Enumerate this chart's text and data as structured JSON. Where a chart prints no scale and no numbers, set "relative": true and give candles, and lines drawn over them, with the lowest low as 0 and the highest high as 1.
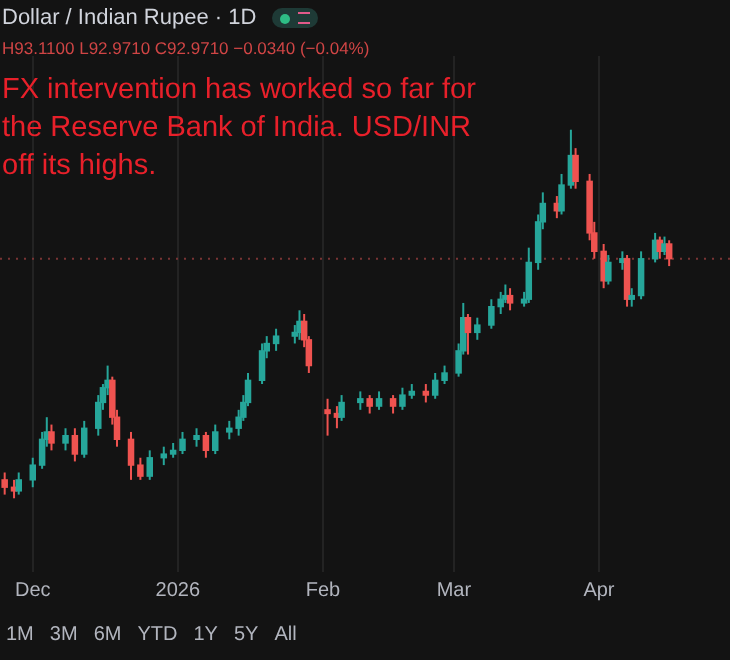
{
  "chart_data": {
    "type": "candlestick",
    "title": "Dollar / Indian Rupee · 1D",
    "subtitle": "H93.1100 L92.9710 C92.9710 −0.0340 (−0.04%)",
    "annotations": [
      "FX intervention has worked so far for the Reserve Bank of India. USD/INR off its highs.",
      "1M",
      "3M",
      "6M",
      "YTD",
      "1Y",
      "5Y",
      "All"
    ],
    "relative": true,
    "x": [
      "2025-11-25",
      "2025-11-27",
      "2025-11-28",
      "2025-12-01",
      "2025-12-03",
      "2025-12-04",
      "2025-12-05",
      "2025-12-08",
      "2025-12-10",
      "2025-12-12",
      "2025-12-15",
      "2025-12-16",
      "2025-12-17",
      "2025-12-18",
      "2025-12-19",
      "2025-12-22",
      "2025-12-24",
      "2025-12-26",
      "2025-12-29",
      "2025-12-31",
      "2026-01-02",
      "2026-01-05",
      "2026-01-07",
      "2026-01-09",
      "2026-01-12",
      "2026-01-14",
      "2026-01-15",
      "2026-01-16",
      "2026-01-19",
      "2026-01-20",
      "2026-01-22",
      "2026-01-26",
      "2026-01-27",
      "2026-01-28",
      "2026-01-29",
      "2026-02-02",
      "2026-02-04",
      "2026-02-05",
      "2026-02-09",
      "2026-02-11",
      "2026-02-13",
      "2026-02-16",
      "2026-02-18",
      "2026-02-20",
      "2026-02-23",
      "2026-02-25",
      "2026-02-27",
      "2026-03-02",
      "2026-03-03",
      "2026-03-04",
      "2026-03-06",
      "2026-03-09",
      "2026-03-11",
      "2026-03-12",
      "2026-03-13",
      "2026-03-16",
      "2026-03-17",
      "2026-03-19",
      "2026-03-20",
      "2026-03-23",
      "2026-03-24",
      "2026-03-26",
      "2026-03-27",
      "2026-03-30",
      "2026-03-31",
      "2026-04-02",
      "2026-04-03",
      "2026-04-06",
      "2026-04-07",
      "2026-04-08",
      "2026-04-10",
      "2026-04-13",
      "2026-04-14",
      "2026-04-15",
      "2026-04-16"
    ],
    "ohlc": [
      [
        0.05,
        0.07,
        0.01,
        0.03
      ],
      [
        0.03,
        0.05,
        0.0,
        0.02
      ],
      [
        0.02,
        0.07,
        0.01,
        0.05
      ],
      [
        0.05,
        0.11,
        0.03,
        0.09
      ],
      [
        0.09,
        0.18,
        0.08,
        0.16
      ],
      [
        0.16,
        0.22,
        0.14,
        0.18
      ],
      [
        0.18,
        0.2,
        0.13,
        0.15
      ],
      [
        0.15,
        0.19,
        0.13,
        0.17
      ],
      [
        0.17,
        0.19,
        0.1,
        0.12
      ],
      [
        0.12,
        0.21,
        0.11,
        0.19
      ],
      [
        0.19,
        0.28,
        0.17,
        0.26
      ],
      [
        0.26,
        0.31,
        0.24,
        0.3
      ],
      [
        0.3,
        0.36,
        0.28,
        0.32
      ],
      [
        0.32,
        0.33,
        0.2,
        0.22
      ],
      [
        0.22,
        0.24,
        0.14,
        0.16
      ],
      [
        0.16,
        0.18,
        0.05,
        0.09
      ],
      [
        0.09,
        0.11,
        0.05,
        0.06
      ],
      [
        0.06,
        0.13,
        0.05,
        0.11
      ],
      [
        0.11,
        0.14,
        0.09,
        0.12
      ],
      [
        0.12,
        0.15,
        0.11,
        0.13
      ],
      [
        0.13,
        0.18,
        0.12,
        0.16
      ],
      [
        0.16,
        0.19,
        0.14,
        0.17
      ],
      [
        0.17,
        0.18,
        0.11,
        0.13
      ],
      [
        0.13,
        0.2,
        0.12,
        0.18
      ],
      [
        0.18,
        0.21,
        0.16,
        0.19
      ],
      [
        0.19,
        0.24,
        0.17,
        0.22
      ],
      [
        0.22,
        0.28,
        0.21,
        0.26
      ],
      [
        0.26,
        0.34,
        0.25,
        0.32
      ],
      [
        0.32,
        0.42,
        0.31,
        0.4
      ],
      [
        0.4,
        0.44,
        0.38,
        0.42
      ],
      [
        0.42,
        0.46,
        0.4,
        0.44
      ],
      [
        0.44,
        0.47,
        0.42,
        0.45
      ],
      [
        0.45,
        0.51,
        0.43,
        0.48
      ],
      [
        0.48,
        0.5,
        0.41,
        0.43
      ],
      [
        0.43,
        0.44,
        0.34,
        0.36
      ],
      [
        0.24,
        0.27,
        0.17,
        0.23
      ],
      [
        0.23,
        0.25,
        0.19,
        0.22
      ],
      [
        0.22,
        0.28,
        0.21,
        0.26
      ],
      [
        0.26,
        0.29,
        0.24,
        0.27
      ],
      [
        0.27,
        0.28,
        0.23,
        0.25
      ],
      [
        0.25,
        0.29,
        0.24,
        0.27
      ],
      [
        0.27,
        0.28,
        0.23,
        0.25
      ],
      [
        0.25,
        0.3,
        0.24,
        0.28
      ],
      [
        0.28,
        0.31,
        0.27,
        0.29
      ],
      [
        0.29,
        0.31,
        0.26,
        0.28
      ],
      [
        0.28,
        0.34,
        0.27,
        0.32
      ],
      [
        0.32,
        0.36,
        0.31,
        0.34
      ],
      [
        0.34,
        0.42,
        0.33,
        0.4
      ],
      [
        0.4,
        0.53,
        0.39,
        0.49
      ],
      [
        0.49,
        0.5,
        0.39,
        0.45
      ],
      [
        0.45,
        0.49,
        0.43,
        0.47
      ],
      [
        0.47,
        0.54,
        0.46,
        0.52
      ],
      [
        0.52,
        0.56,
        0.5,
        0.54
      ],
      [
        0.54,
        0.58,
        0.53,
        0.55
      ],
      [
        0.55,
        0.57,
        0.51,
        0.53
      ],
      [
        0.53,
        0.56,
        0.52,
        0.54
      ],
      [
        0.54,
        0.68,
        0.53,
        0.64
      ],
      [
        0.64,
        0.77,
        0.62,
        0.75
      ],
      [
        0.75,
        0.83,
        0.73,
        0.8
      ],
      [
        0.8,
        0.82,
        0.76,
        0.78
      ],
      [
        0.78,
        0.88,
        0.77,
        0.85
      ],
      [
        0.85,
        1.0,
        0.84,
        0.93
      ],
      [
        0.93,
        0.95,
        0.84,
        0.86
      ],
      [
        0.86,
        0.88,
        0.7,
        0.72
      ],
      [
        0.72,
        0.75,
        0.65,
        0.67
      ],
      [
        0.67,
        0.69,
        0.57,
        0.59
      ],
      [
        0.59,
        0.66,
        0.58,
        0.64
      ],
      [
        0.64,
        0.67,
        0.62,
        0.65
      ],
      [
        0.65,
        0.66,
        0.52,
        0.54
      ],
      [
        0.54,
        0.57,
        0.52,
        0.55
      ],
      [
        0.55,
        0.67,
        0.54,
        0.65
      ],
      [
        0.65,
        0.72,
        0.64,
        0.7
      ],
      [
        0.7,
        0.71,
        0.65,
        0.67
      ],
      [
        0.67,
        0.71,
        0.66,
        0.69
      ],
      [
        0.69,
        0.7,
        0.63,
        0.65
      ]
    ],
    "colors": [
      "#ef5350",
      "#ef5350",
      "#26a69a",
      "#26a69a",
      "#26a69a",
      "#26a69a",
      "#ef5350",
      "#26a69a",
      "#ef5350",
      "#26a69a",
      "#26a69a",
      "#26a69a",
      "#26a69a",
      "#ef5350",
      "#ef5350",
      "#ef5350",
      "#ef5350",
      "#26a69a",
      "#26a69a",
      "#26a69a",
      "#26a69a",
      "#26a69a",
      "#ef5350",
      "#26a69a",
      "#26a69a",
      "#26a69a",
      "#26a69a",
      "#26a69a",
      "#26a69a",
      "#26a69a",
      "#26a69a",
      "#26a69a",
      "#26a69a",
      "#ef5350",
      "#ef5350",
      "#ef5350",
      "#ef5350",
      "#26a69a",
      "#26a69a",
      "#ef5350",
      "#26a69a",
      "#ef5350",
      "#26a69a",
      "#26a69a",
      "#ef5350",
      "#26a69a",
      "#26a69a",
      "#26a69a",
      "#26a69a",
      "#ef5350",
      "#26a69a",
      "#26a69a",
      "#26a69a",
      "#26a69a",
      "#ef5350",
      "#26a69a",
      "#26a69a",
      "#26a69a",
      "#26a69a",
      "#ef5350",
      "#26a69a",
      "#26a69a",
      "#ef5350",
      "#ef5350",
      "#ef5350",
      "#ef5350",
      "#26a69a",
      "#26a69a",
      "#ef5350",
      "#26a69a",
      "#26a69a",
      "#26a69a",
      "#ef5350",
      "#26a69a",
      "#ef5350"
    ],
    "xlim": [
      "2025-11-24",
      "2026-04-29"
    ],
    "xticks": [
      {
        "value": "2025-12-01",
        "label": "Dec"
      },
      {
        "value": "2026-01-01",
        "label": "2026"
      },
      {
        "value": "2026-02-01",
        "label": "Feb"
      },
      {
        "value": "2026-03-01",
        "label": "Mar"
      },
      {
        "value": "2026-04-01",
        "label": "Apr"
      }
    ],
    "ref_lines": [
      {
        "axis": "y",
        "value": 0.65,
        "color": "#7a3434",
        "line_style": "dotted"
      }
    ],
    "grid": "x",
    "legend": false
  }
}
